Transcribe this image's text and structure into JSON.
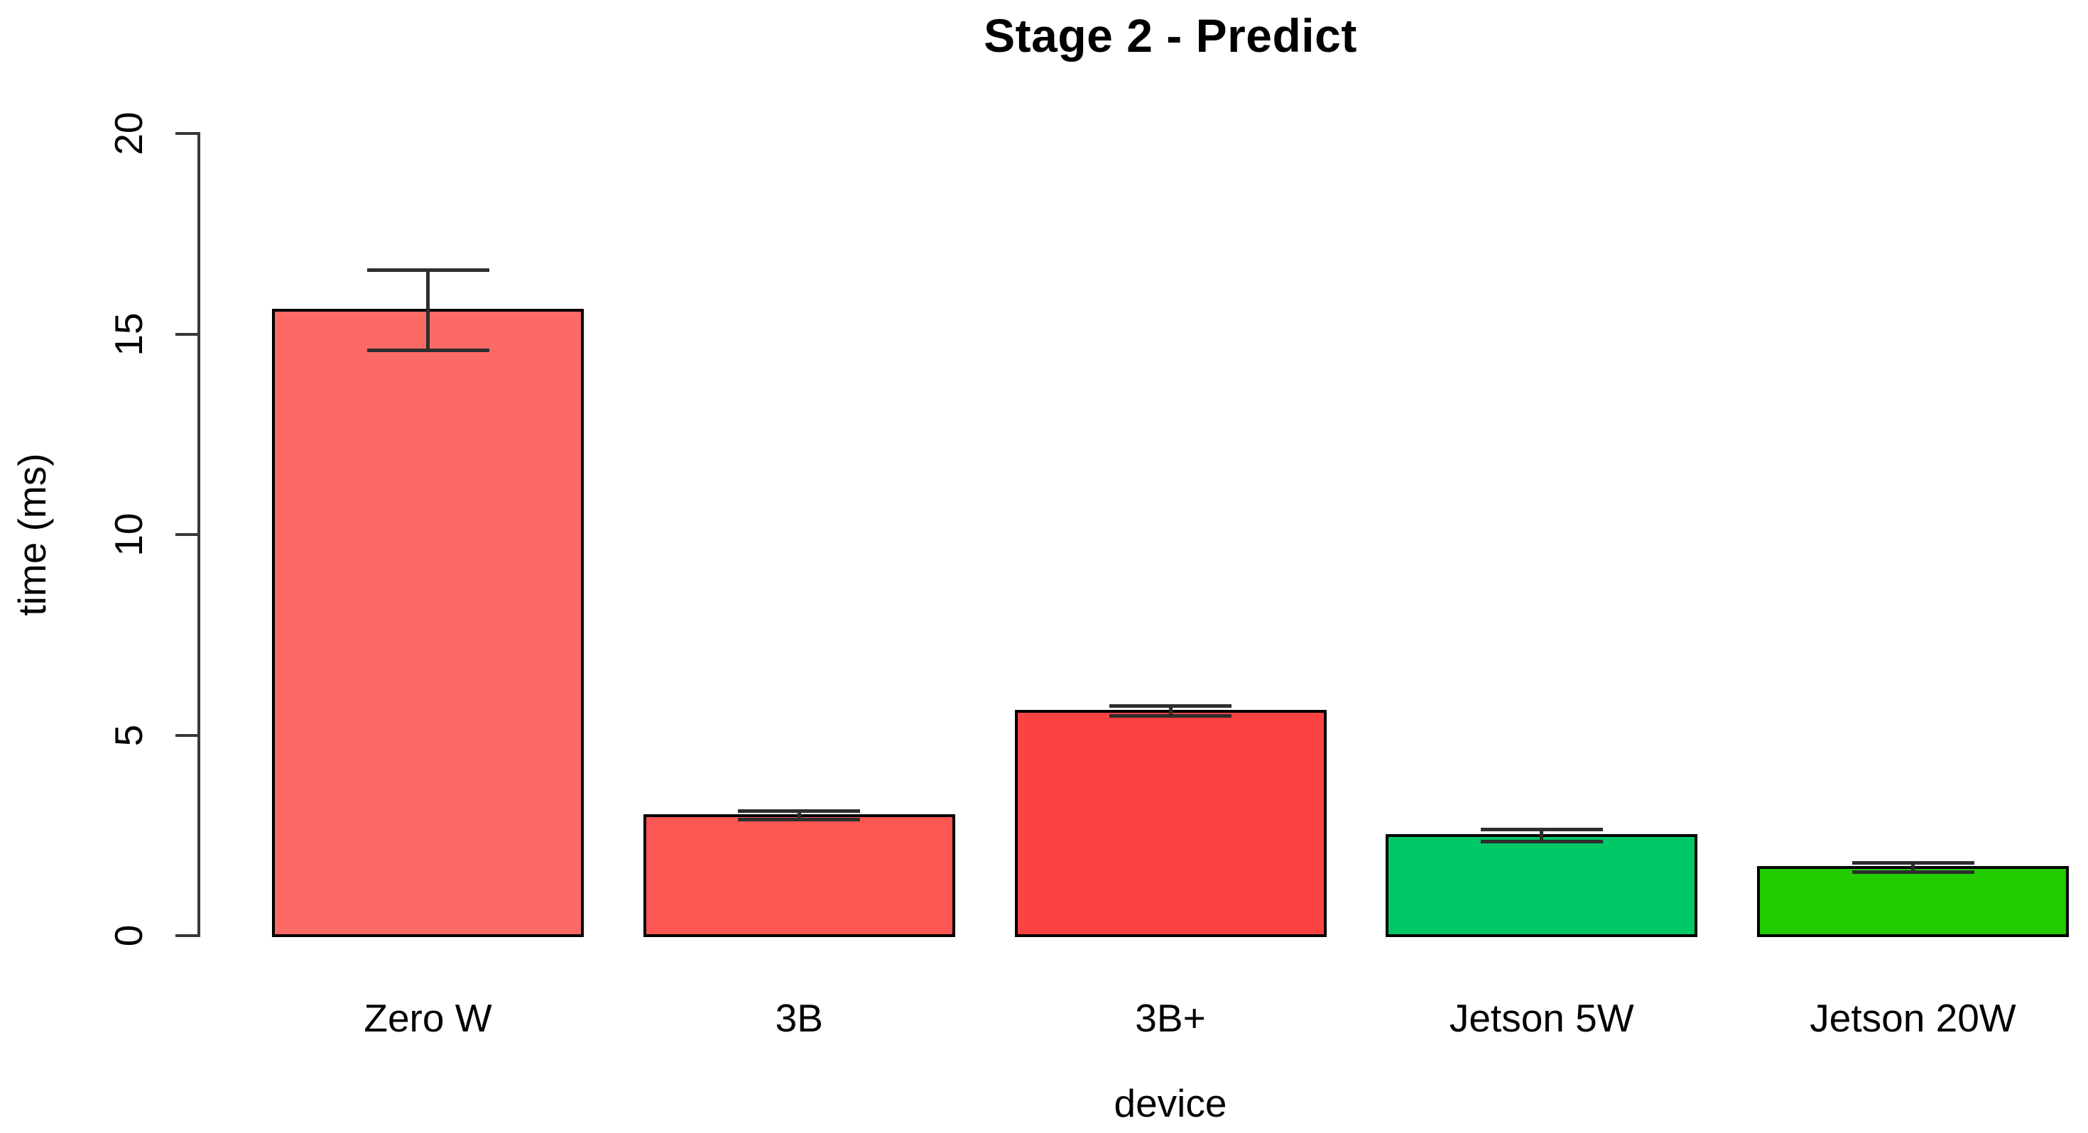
{
  "chart_data": {
    "type": "bar",
    "title": "Stage 2 - Predict",
    "xlabel": "device",
    "ylabel": "time (ms)",
    "categories": [
      "Zero W",
      "3B",
      "3B+",
      "Jetson 5W",
      "Jetson 20W"
    ],
    "values": [
      15.6,
      3.0,
      5.6,
      2.5,
      1.7
    ],
    "errors": [
      1.0,
      0.11,
      0.13,
      0.15,
      0.11
    ],
    "bar_colors": [
      "#FC6A66",
      "#FC5753",
      "#FC4343",
      "#00C867",
      "#22CC00"
    ],
    "bar_border_color": "#000000",
    "error_bar_color": "#2e2e2e",
    "axis_color": "#383838",
    "ylim": [
      0,
      20
    ],
    "yticks": [
      0,
      5,
      10,
      15,
      20
    ],
    "grid": false,
    "legend_position": "none"
  }
}
